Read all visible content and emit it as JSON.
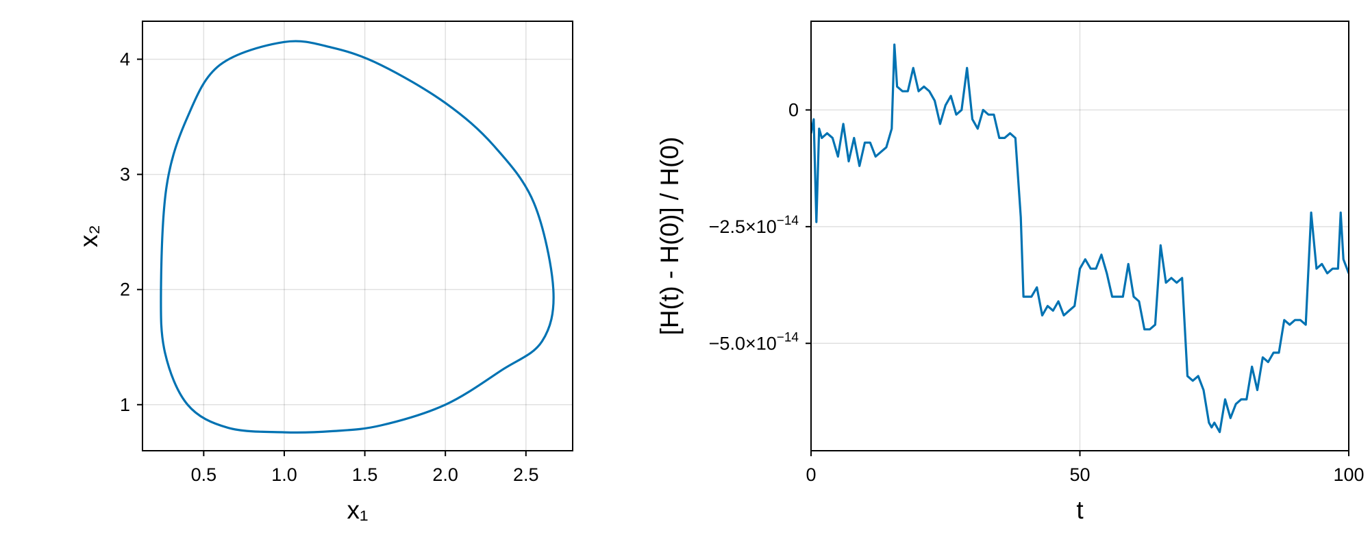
{
  "chart_data": [
    {
      "type": "line",
      "xlabel": "x₁",
      "ylabel": "x₂",
      "xlim": [
        0.12,
        2.79
      ],
      "ylim": [
        0.6,
        4.33
      ],
      "grid": true,
      "x_ticks": [
        {
          "value": 0.5,
          "label": "0.5"
        },
        {
          "value": 1.0,
          "label": "1.0"
        },
        {
          "value": 1.5,
          "label": "1.5"
        },
        {
          "value": 2.0,
          "label": "2.0"
        },
        {
          "value": 2.5,
          "label": "2.5"
        }
      ],
      "y_ticks": [
        {
          "value": 1,
          "label": "1"
        },
        {
          "value": 2,
          "label": "2"
        },
        {
          "value": 3,
          "label": "3"
        },
        {
          "value": 4,
          "label": "4"
        }
      ],
      "color": "#0072b2",
      "series": [
        {
          "x": [
            1.0,
            1.3,
            1.6,
            2.0,
            2.3,
            2.55,
            2.67,
            2.6,
            2.35,
            2.0,
            1.6,
            1.3,
            1.0,
            0.65,
            0.4,
            0.26,
            0.235,
            0.27,
            0.4,
            0.6,
            1.0,
            1.5,
            2.0,
            2.4,
            2.6,
            2.67,
            2.55,
            2.2,
            1.6,
            1.0
          ],
          "y": [
            4.15,
            4.1,
            3.95,
            3.62,
            3.25,
            2.75,
            2.0,
            1.55,
            1.3,
            1.0,
            0.82,
            0.77,
            0.76,
            0.8,
            1.0,
            1.45,
            2.0,
            2.9,
            3.5,
            3.95,
            4.15,
            4.05,
            3.7,
            3.2,
            2.6,
            2.0,
            1.45,
            1.15,
            0.85,
            0.76
          ]
        }
      ]
    },
    {
      "type": "line",
      "xlabel": "t",
      "ylabel": "[H(t) - H(0)] / H(0)",
      "xlim": [
        0,
        100
      ],
      "ylim": [
        -7.3e-14,
        1.9e-14
      ],
      "grid": true,
      "x_ticks": [
        {
          "value": 0,
          "label": "0"
        },
        {
          "value": 50,
          "label": "50"
        },
        {
          "value": 100,
          "label": "100"
        }
      ],
      "y_ticks": [
        {
          "value": 0,
          "label": "0"
        },
        {
          "value": -2.5e-14,
          "label": "−2.5×10",
          "exp": "−14"
        },
        {
          "value": -5e-14,
          "label": "−5.0×10",
          "exp": "−14"
        }
      ],
      "color": "#0072b2",
      "series": [
        {
          "x": [
            0,
            0.5,
            1,
            1.5,
            2,
            3,
            4,
            5,
            6,
            7,
            8,
            9,
            10,
            11,
            12,
            13,
            14,
            15,
            15.5,
            16,
            17,
            18,
            19,
            20,
            21,
            22,
            23,
            24,
            25,
            26,
            27,
            28,
            29,
            30,
            31,
            32,
            33,
            34,
            35,
            36,
            37,
            38,
            39,
            39.5,
            40,
            41,
            42,
            43,
            44,
            45,
            46,
            47,
            48,
            49,
            50,
            51,
            52,
            53,
            54,
            55,
            56,
            57,
            58,
            59,
            60,
            61,
            62,
            63,
            64,
            65,
            66,
            67,
            68,
            69,
            70,
            71,
            72,
            73,
            74,
            74.5,
            75,
            76,
            77,
            78,
            79,
            80,
            81,
            82,
            83,
            84,
            85,
            86,
            87,
            88,
            89,
            90,
            91,
            92,
            93,
            94,
            95,
            96,
            97,
            98,
            98.5,
            99,
            100
          ],
          "y": [
            -5e-15,
            -2e-15,
            -2.4e-14,
            -4e-15,
            -6e-15,
            -5e-15,
            -6e-15,
            -1e-14,
            -3e-15,
            -1.1e-14,
            -6e-15,
            -1.2e-14,
            -7e-15,
            -7e-15,
            -1e-14,
            -9e-15,
            -8e-15,
            -4e-15,
            1.4e-14,
            5e-15,
            4e-15,
            4e-15,
            9e-15,
            4e-15,
            5e-15,
            4e-15,
            2e-15,
            -3e-15,
            1e-15,
            3e-15,
            -1e-15,
            0,
            9e-15,
            -2e-15,
            -4e-15,
            0,
            -1e-15,
            -1e-15,
            -6e-15,
            -6e-15,
            -5e-15,
            -6e-15,
            -2.3e-14,
            -4e-14,
            -4e-14,
            -4e-14,
            -3.8e-14,
            -4.4e-14,
            -4.2e-14,
            -4.3e-14,
            -4.1e-14,
            -4.4e-14,
            -4.3e-14,
            -4.2e-14,
            -3.4e-14,
            -3.2e-14,
            -3.4e-14,
            -3.4e-14,
            -3.1e-14,
            -3.5e-14,
            -4e-14,
            -4e-14,
            -4e-14,
            -3.3e-14,
            -4e-14,
            -4.1e-14,
            -4.7e-14,
            -4.7e-14,
            -4.6e-14,
            -2.9e-14,
            -3.7e-14,
            -3.6e-14,
            -3.7e-14,
            -3.6e-14,
            -5.7e-14,
            -5.8e-14,
            -5.7e-14,
            -6e-14,
            -6.7e-14,
            -6.8e-14,
            -6.7e-14,
            -6.9e-14,
            -6.2e-14,
            -6.6e-14,
            -6.3e-14,
            -6.2e-14,
            -6.2e-14,
            -5.5e-14,
            -6e-14,
            -5.3e-14,
            -5.4e-14,
            -5.2e-14,
            -5.2e-14,
            -4.5e-14,
            -4.6e-14,
            -4.5e-14,
            -4.5e-14,
            -4.6e-14,
            -2.2e-14,
            -3.4e-14,
            -3.3e-14,
            -3.5e-14,
            -3.4e-14,
            -3.4e-14,
            -2.2e-14,
            -3.2e-14,
            -3.5e-14
          ]
        }
      ]
    }
  ]
}
